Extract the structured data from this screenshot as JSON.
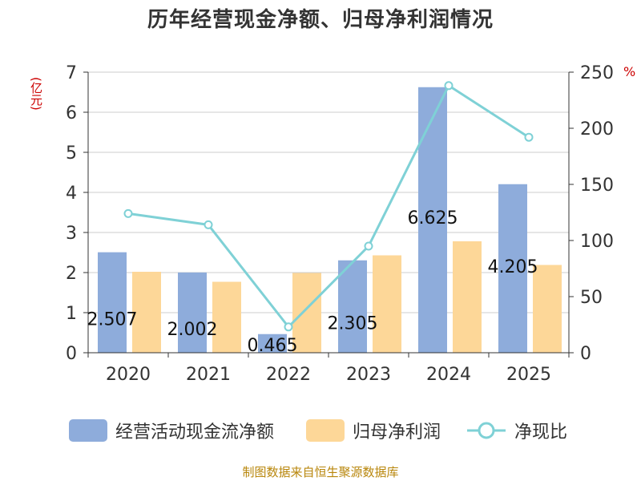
{
  "chart_data": {
    "type": "bar",
    "title": "历年经营现金净额、归母净利润情况",
    "categories": [
      "2020",
      "2021",
      "2022",
      "2023",
      "2024",
      "2025"
    ],
    "series": [
      {
        "name": "经营活动现金流净额",
        "type": "bar",
        "axis": "left",
        "values": [
          2.507,
          2.002,
          0.465,
          2.305,
          6.625,
          4.205
        ],
        "labels": [
          "2.507",
          "2.002",
          "0.465",
          "2.305",
          "6.625",
          "4.205"
        ],
        "color": "#8eacdb"
      },
      {
        "name": "归母净利润",
        "type": "bar",
        "axis": "left",
        "values": [
          2.02,
          1.77,
          1.99,
          2.43,
          2.78,
          2.19
        ],
        "color": "#fdd798"
      },
      {
        "name": "净现比",
        "type": "line",
        "axis": "right",
        "values": [
          124,
          114,
          23,
          95,
          238,
          192
        ],
        "color": "#7fd1d6"
      }
    ],
    "ylabel_left": "(亿元)",
    "ylabel_right": "%",
    "ylim_left": [
      0,
      7
    ],
    "ylim_right": [
      0,
      250
    ],
    "yticks_left": [
      "0",
      "1",
      "2",
      "3",
      "4",
      "5",
      "6",
      "7"
    ],
    "yticks_right": [
      "0",
      "50",
      "100",
      "150",
      "200",
      "250"
    ],
    "grid": true,
    "legend": "bottom"
  },
  "source": "制图数据来自恒生聚源数据库"
}
